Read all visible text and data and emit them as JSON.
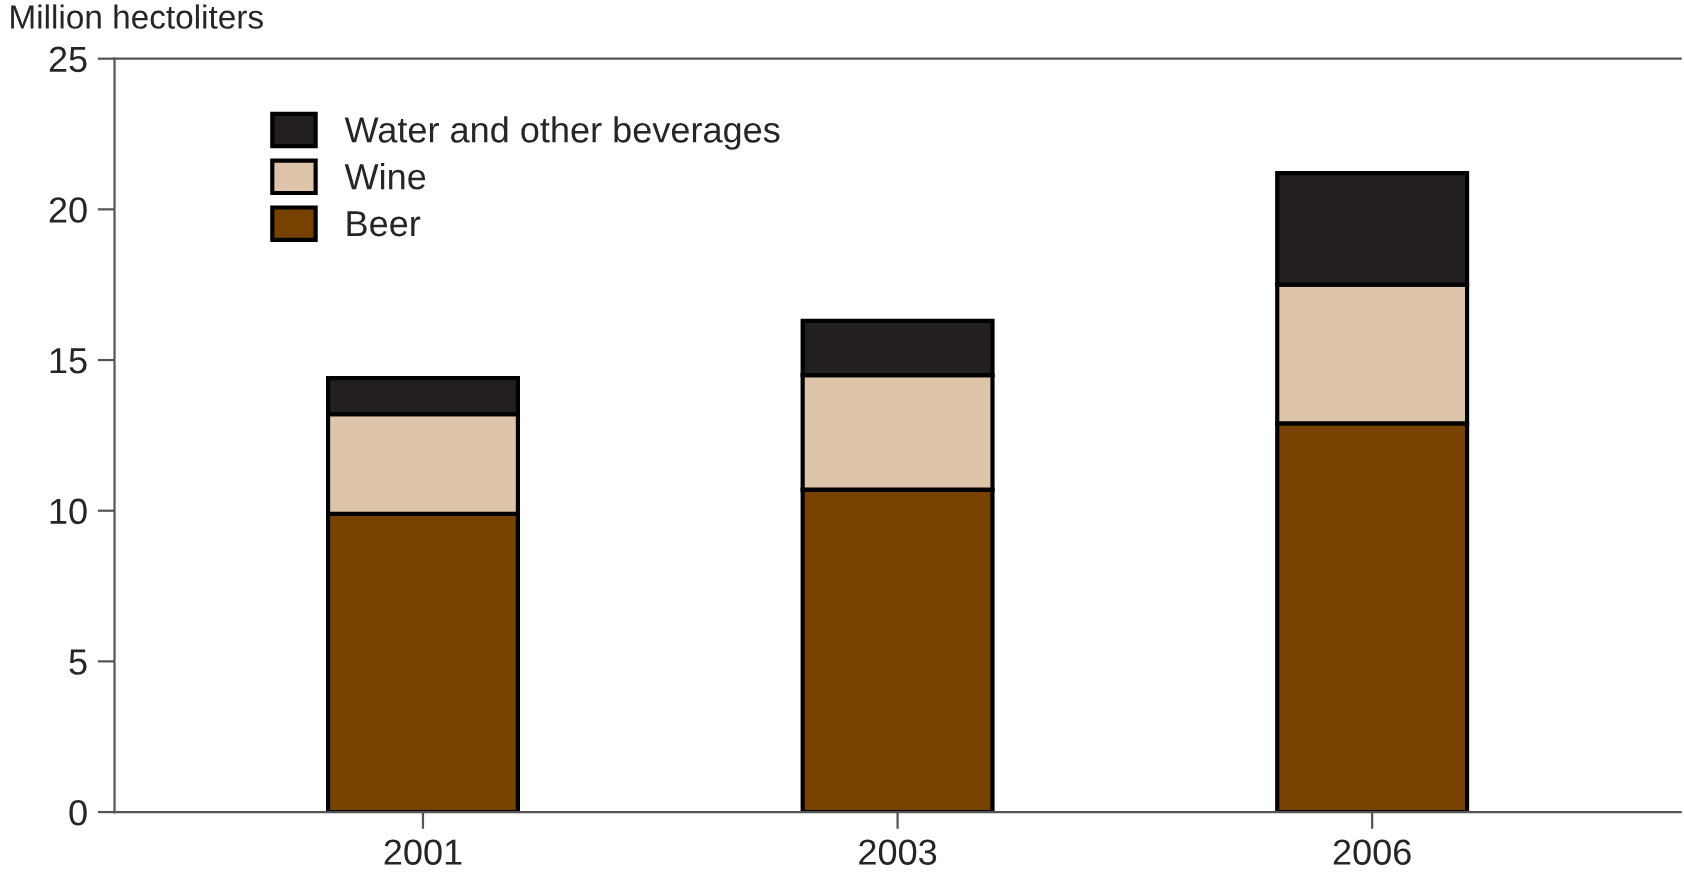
{
  "chart_data": {
    "type": "bar",
    "stacked": true,
    "ylabel": "Million hectoliters",
    "categories": [
      "2001",
      "2003",
      "2006"
    ],
    "series": [
      {
        "name": "Beer",
        "color": "#774100",
        "values": [
          9.9,
          10.7,
          12.9
        ]
      },
      {
        "name": "Wine",
        "color": "#dec5aa",
        "values": [
          3.3,
          3.8,
          4.6
        ]
      },
      {
        "name": "Water and other beverages",
        "color": "#231f20",
        "values": [
          1.2,
          1.8,
          3.7
        ]
      }
    ],
    "ylim": [
      0,
      25
    ],
    "yticks": [
      0,
      5,
      10,
      15,
      20,
      25
    ],
    "grid": false,
    "legend": "top left"
  }
}
